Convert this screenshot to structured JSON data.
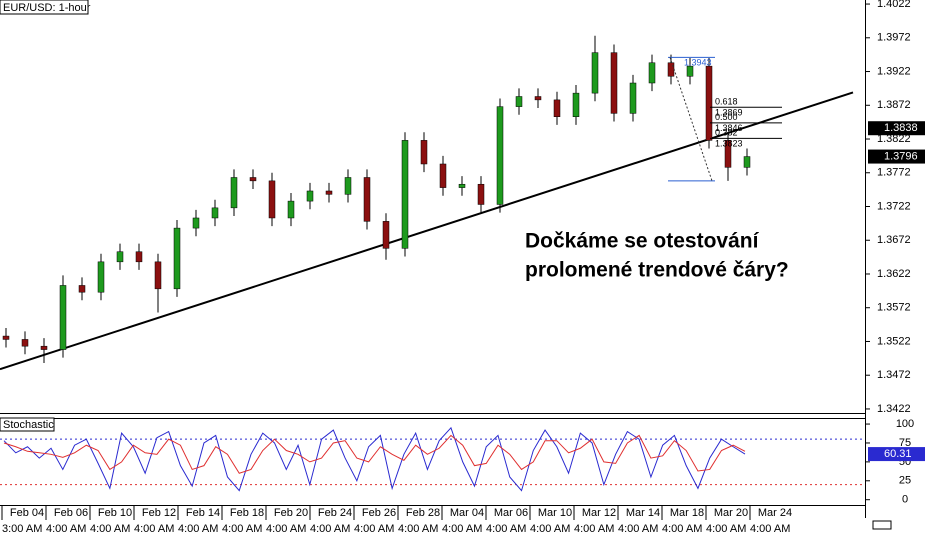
{
  "chart_data": [
    {
      "type": "candlestick",
      "title": "EUR/USD: 1-hour",
      "categories": [
        "Feb 04",
        "Feb 06",
        "Feb 10",
        "Feb 12",
        "Feb 14",
        "Feb 18",
        "Feb 20",
        "Feb 24",
        "Feb 26",
        "Feb 28",
        "Mar 04",
        "Mar 06",
        "Mar 10",
        "Mar 12",
        "Mar 14",
        "Mar 18",
        "Mar 20",
        "Mar 24"
      ],
      "time_labels": [
        "3:00 AM",
        "4:00 AM",
        "4:00 AM",
        "4:00 AM",
        "4:00 AM",
        "4:00 AM",
        "4:00 AM",
        "4:00 AM",
        "4:00 AM",
        "4:00 AM",
        "4:00 AM",
        "4:00 AM",
        "4:00 AM",
        "4:00 AM",
        "4:00 AM",
        "4:00 AM",
        "4:00 AM",
        "4:00 AM"
      ],
      "open": [
        1.353,
        1.3525,
        1.3515,
        1.351,
        1.3605,
        1.3595,
        1.364,
        1.3655,
        1.364,
        1.36,
        1.369,
        1.3705,
        1.372,
        1.3765,
        1.376,
        1.3705,
        1.373,
        1.3745,
        1.374,
        1.3765,
        1.37,
        1.366,
        1.382,
        1.3785,
        1.375,
        1.3755,
        1.3725,
        1.387,
        1.3885,
        1.388,
        1.3855,
        1.389,
        1.395,
        1.386,
        1.3905,
        1.3935,
        1.3915,
        1.393,
        1.382,
        1.378
      ],
      "close": [
        1.3525,
        1.3515,
        1.351,
        1.3605,
        1.3595,
        1.364,
        1.3655,
        1.364,
        1.36,
        1.369,
        1.3705,
        1.372,
        1.3765,
        1.376,
        1.3705,
        1.373,
        1.3745,
        1.374,
        1.3765,
        1.37,
        1.366,
        1.382,
        1.3785,
        1.375,
        1.3755,
        1.3725,
        1.387,
        1.3885,
        1.388,
        1.3855,
        1.389,
        1.395,
        1.386,
        1.3905,
        1.3935,
        1.3915,
        1.393,
        1.382,
        1.378,
        1.3796
      ],
      "high": [
        1.3542,
        1.3537,
        1.3527,
        1.362,
        1.3617,
        1.3652,
        1.3667,
        1.3667,
        1.3652,
        1.3702,
        1.3717,
        1.3732,
        1.3777,
        1.3777,
        1.3772,
        1.3742,
        1.3757,
        1.3757,
        1.3777,
        1.3777,
        1.3712,
        1.3832,
        1.3832,
        1.3797,
        1.3767,
        1.3767,
        1.3882,
        1.3897,
        1.3897,
        1.3892,
        1.3902,
        1.3975,
        1.3962,
        1.3917,
        1.3947,
        1.3947,
        1.3942,
        1.3942,
        1.3832,
        1.3808
      ],
      "low": [
        1.3513,
        1.3503,
        1.349,
        1.3498,
        1.3583,
        1.3583,
        1.3628,
        1.3628,
        1.3565,
        1.3588,
        1.3678,
        1.3693,
        1.3708,
        1.3748,
        1.3693,
        1.3693,
        1.3718,
        1.3728,
        1.3728,
        1.3688,
        1.3643,
        1.3648,
        1.3773,
        1.3738,
        1.3738,
        1.3713,
        1.3713,
        1.3858,
        1.3868,
        1.3843,
        1.3843,
        1.3878,
        1.3848,
        1.3848,
        1.3893,
        1.3903,
        1.3903,
        1.3808,
        1.376,
        1.3768
      ],
      "up_color": "#1e9a1e",
      "down_color": "#8b1010",
      "ylim": [
        1.3416,
        1.4028
      ],
      "yticks": [
        1.4022,
        1.3972,
        1.3922,
        1.3872,
        1.3822,
        1.3772,
        1.3722,
        1.3672,
        1.3622,
        1.3572,
        1.3522,
        1.3472,
        1.3422
      ],
      "price_marker": 1.3838,
      "trendline": [
        1.3481,
        1.3891
      ],
      "fib": {
        "high": 1.3943,
        "low": 1.376,
        "levels": [
          {
            "ratio": 0.618,
            "price": 1.3869
          },
          {
            "ratio": {
              "value": 0.5,
              "label": "0.500"
            },
            "price": 1.3846
          },
          {
            "ratio": 0.382,
            "price": 1.3823
          }
        ]
      },
      "annotation": [
        "Dočkáme se otestování",
        "prolomené trendové čáry?"
      ]
    },
    {
      "type": "line",
      "title": "Stochastic",
      "series": [
        {
          "color": "#2a2ad0",
          "values": [
            78,
            62,
            70,
            55,
            68,
            40,
            72,
            80,
            48,
            15,
            88,
            70,
            35,
            82,
            90,
            45,
            18,
            75,
            85,
            30,
            12,
            60,
            88,
            75,
            40,
            72,
            20,
            80,
            92,
            55,
            25,
            70,
            85,
            15,
            60,
            88,
            40,
            78,
            95,
            50,
            18,
            70,
            85,
            30,
            12,
            65,
            92,
            70,
            35,
            88,
            75,
            20,
            60,
            90,
            80,
            30,
            72,
            85,
            45,
            15,
            55,
            80,
            70,
            60.31
          ]
        },
        {
          "color": "#e03030",
          "values": [
            75,
            70,
            64,
            62,
            60,
            56,
            62,
            72,
            65,
            40,
            50,
            72,
            62,
            60,
            80,
            72,
            40,
            45,
            70,
            60,
            35,
            40,
            65,
            80,
            65,
            60,
            50,
            55,
            75,
            78,
            55,
            50,
            70,
            60,
            52,
            72,
            60,
            68,
            85,
            72,
            45,
            48,
            72,
            60,
            40,
            50,
            78,
            78,
            62,
            68,
            80,
            50,
            48,
            75,
            85,
            55,
            58,
            78,
            65,
            38,
            40,
            65,
            72,
            64
          ]
        }
      ],
      "ylim": [
        -7,
        108
      ],
      "yticks": [
        100,
        75,
        50,
        25,
        0
      ],
      "levels": [
        {
          "value": 80,
          "color": "#2a2ad0"
        },
        {
          "value": 20,
          "color": "#e03030"
        }
      ]
    }
  ]
}
